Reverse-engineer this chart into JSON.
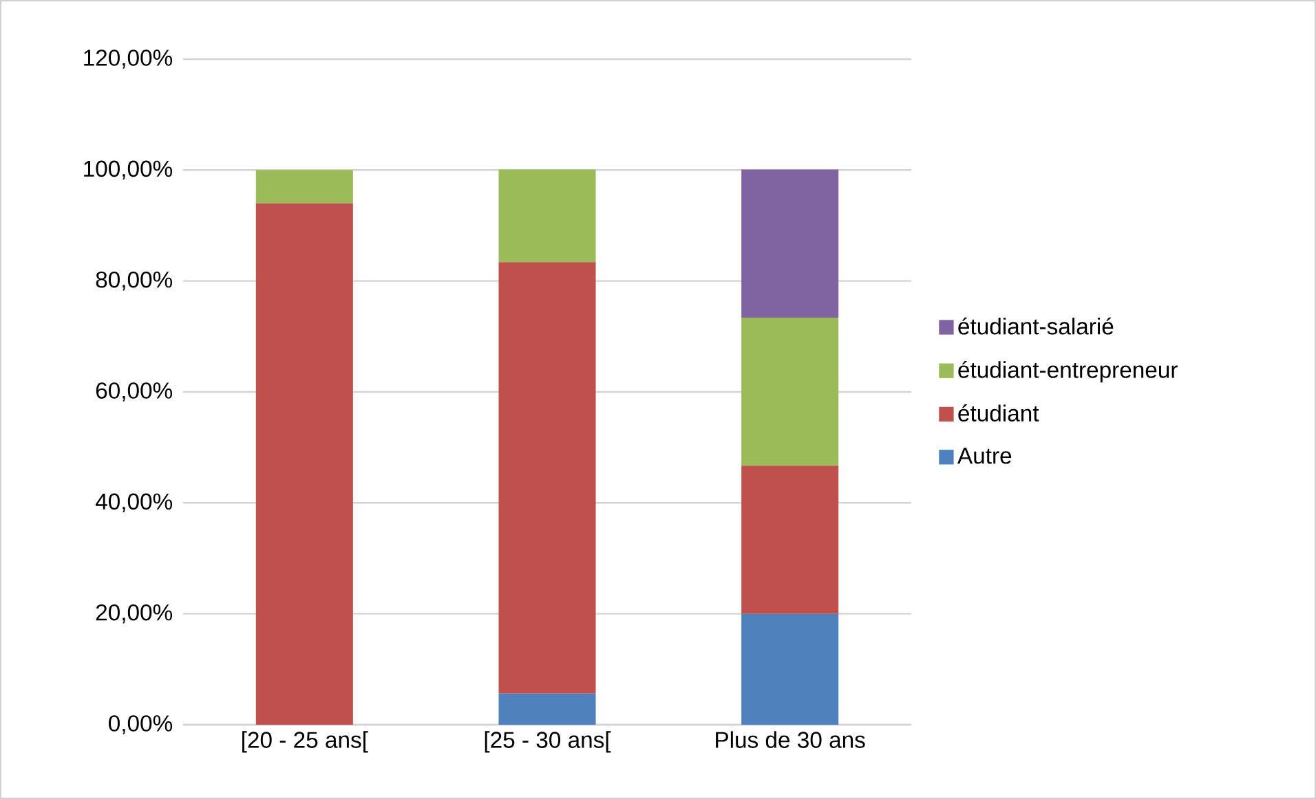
{
  "chart_data": {
    "type": "bar",
    "stacked": true,
    "categories": [
      "[20 - 25 ans[",
      "[25 - 30 ans[",
      "Plus de 30 ans"
    ],
    "series": [
      {
        "name": "Autre",
        "color": "#4f81bd",
        "values": [
          0,
          5.6,
          20
        ]
      },
      {
        "name": "étudiant",
        "color": "#c0504d",
        "values": [
          94,
          77.8,
          26.7
        ]
      },
      {
        "name": "étudiant-entrepreneur",
        "color": "#9bbb59",
        "values": [
          6,
          16.7,
          26.7
        ]
      },
      {
        "name": "étudiant-salarié",
        "color": "#8064a2",
        "values": [
          0,
          0,
          26.7
        ]
      }
    ],
    "ylim": [
      0,
      120
    ],
    "yticks": [
      {
        "value": 0,
        "label": "0,00%"
      },
      {
        "value": 20,
        "label": "20,00%"
      },
      {
        "value": 40,
        "label": "40,00%"
      },
      {
        "value": 60,
        "label": "60,00%"
      },
      {
        "value": 80,
        "label": "80,00%"
      },
      {
        "value": 100,
        "label": "100,00%"
      },
      {
        "value": 120,
        "label": "120,00%"
      }
    ],
    "grid": "y",
    "legend": "right"
  }
}
